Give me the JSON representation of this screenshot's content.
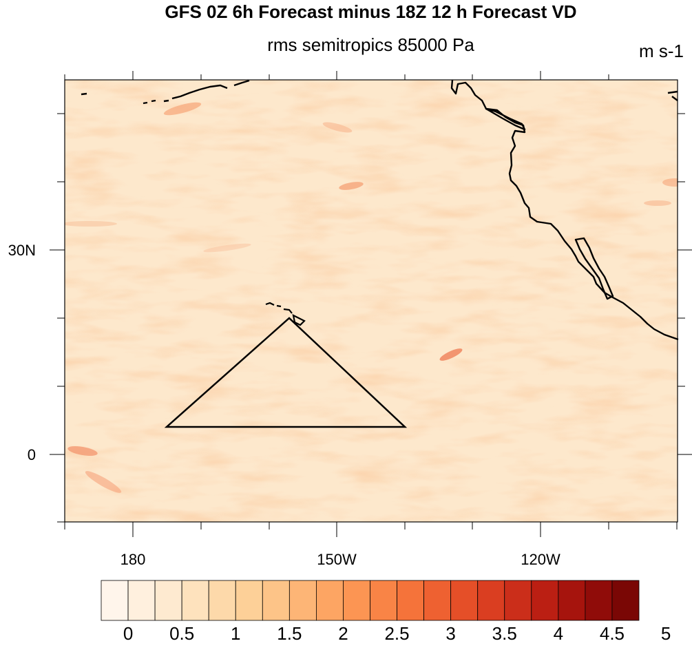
{
  "title": "GFS 0Z 6h Forecast minus 18Z 12 h Forecast VD",
  "subtitle": "rms semitropics 85000 Pa",
  "units": "m s-1",
  "map": {
    "lat_labels": [
      "30N",
      "0"
    ],
    "lon_labels": [
      "180",
      "150W",
      "120W"
    ],
    "features": [
      "coastline",
      "hawaiian-islands",
      "triangle-outline"
    ]
  },
  "colorbar": {
    "labels": [
      "0",
      "0.5",
      "1",
      "1.5",
      "2",
      "2.5",
      "3",
      "3.5",
      "4",
      "4.5",
      "5"
    ],
    "colors": [
      "#fff5eb",
      "#fff0de",
      "#feead0",
      "#fee2bd",
      "#fdd9aa",
      "#fdd098",
      "#fdc488",
      "#fdb576",
      "#fda563",
      "#fc9553",
      "#f98446",
      "#f5733a",
      "#ee6131",
      "#e54f28",
      "#da3e21",
      "#cb2e1a",
      "#bb1f13",
      "#a6140d",
      "#900c09",
      "#7a0705"
    ]
  }
}
